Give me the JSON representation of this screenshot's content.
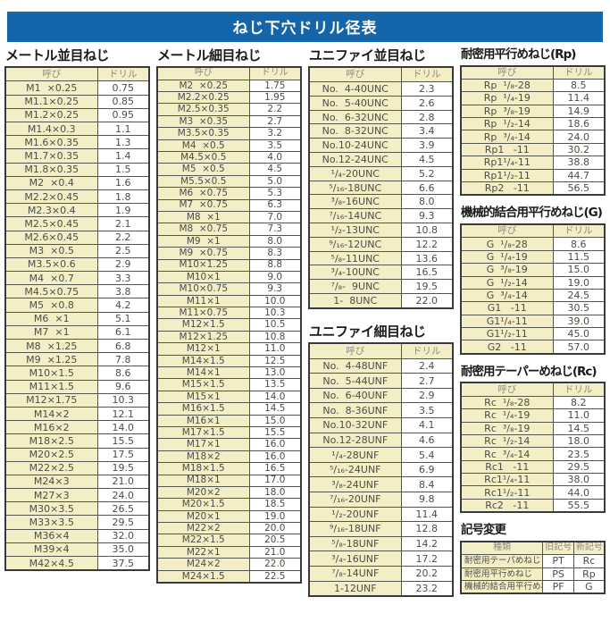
{
  "title": "ねじ下穴ドリル径表",
  "columns": [
    {
      "sections": [
        {
          "key": "metric-coarse",
          "heading": "メートル並目ねじ",
          "headers": [
            "呼び",
            "ドリル"
          ],
          "rows": [
            [
              "M1  ×0.25",
              "0.75"
            ],
            [
              "M1.1×0.25",
              "0.85"
            ],
            [
              "M1.2×0.25",
              "0.95"
            ],
            [
              "M1.4×0.3",
              "1.1"
            ],
            [
              "M1.6×0.35",
              "1.3"
            ],
            [
              "M1.7×0.35",
              "1.4"
            ],
            [
              "M1.8×0.35",
              "1.5"
            ],
            [
              "M2  ×0.4",
              "1.6"
            ],
            [
              "M2.2×0.45",
              "1.8"
            ],
            [
              "M2.3×0.4",
              "1.9"
            ],
            [
              "M2.5×0.45",
              "2.1"
            ],
            [
              "M2.6×0.45",
              "2.2"
            ],
            [
              "M3  ×0.5",
              "2.5"
            ],
            [
              "M3.5×0.6",
              "2.9"
            ],
            [
              "M4  ×0.7",
              "3.3"
            ],
            [
              "M4.5×0.75",
              "3.8"
            ],
            [
              "M5  ×0.8",
              "4.2"
            ],
            [
              "M6  ×1",
              "5.1"
            ],
            [
              "M7  ×1",
              "6.1"
            ],
            [
              "M8  ×1.25",
              "6.8"
            ],
            [
              "M9  ×1.25",
              "7.8"
            ],
            [
              "M10×1.5",
              "8.6"
            ],
            [
              "M11×1.5",
              "9.6"
            ],
            [
              "M12×1.75",
              "10.3"
            ],
            [
              "M14×2",
              "12.1"
            ],
            [
              "M16×2",
              "14.0"
            ],
            [
              "M18×2.5",
              "15.5"
            ],
            [
              "M20×2.5",
              "17.5"
            ],
            [
              "M22×2.5",
              "19.5"
            ],
            [
              "M24×3",
              "21.0"
            ],
            [
              "M27×3",
              "24.0"
            ],
            [
              "M30×3.5",
              "26.5"
            ],
            [
              "M33×3.5",
              "29.5"
            ],
            [
              "M36×4",
              "32.0"
            ],
            [
              "M39×4",
              "35.0"
            ],
            [
              "M42×4.5",
              "37.5"
            ]
          ]
        }
      ]
    },
    {
      "sections": [
        {
          "key": "metric-fine",
          "heading": "メートル細目ねじ",
          "headers": [
            "呼び",
            "ドリル"
          ],
          "rows": [
            [
              "M2  ×0.25",
              "1.75"
            ],
            [
              "M2.2×0.25",
              "1.95"
            ],
            [
              "M2.5×0.35",
              "2.2"
            ],
            [
              "M3  ×0.35",
              "2.7"
            ],
            [
              "M3.5×0.35",
              "3.2"
            ],
            [
              "M4  ×0.5",
              "3.5"
            ],
            [
              "M4.5×0.5",
              "4.0"
            ],
            [
              "M5  ×0.5",
              "4.5"
            ],
            [
              "M5.5×0.5",
              "5.0"
            ],
            [
              "M6  ×0.75",
              "5.3"
            ],
            [
              "M7  ×0.75",
              "6.3"
            ],
            [
              "M8  ×1",
              "7.0"
            ],
            [
              "M8  ×0.75",
              "7.3"
            ],
            [
              "M9  ×1",
              "8.0"
            ],
            [
              "M9  ×0.75",
              "8.3"
            ],
            [
              "M10×1.25",
              "8.8"
            ],
            [
              "M10×1",
              "9.0"
            ],
            [
              "M10×0.75",
              "9.3"
            ],
            [
              "M11×1",
              "10.0"
            ],
            [
              "M11×0.75",
              "10.3"
            ],
            [
              "M12×1.5",
              "10.5"
            ],
            [
              "M12×1.25",
              "10.8"
            ],
            [
              "M12×1",
              "11.0"
            ],
            [
              "M14×1.5",
              "12.5"
            ],
            [
              "M14×1",
              "13.0"
            ],
            [
              "M15×1.5",
              "13.5"
            ],
            [
              "M15×1",
              "14.0"
            ],
            [
              "M16×1.5",
              "14.5"
            ],
            [
              "M16×1",
              "15.0"
            ],
            [
              "M17×1.5",
              "15.5"
            ],
            [
              "M17×1",
              "16.0"
            ],
            [
              "M18×2",
              "16.0"
            ],
            [
              "M18×1.5",
              "16.5"
            ],
            [
              "M18×1",
              "17.0"
            ],
            [
              "M20×2",
              "18.0"
            ],
            [
              "M20×1.5",
              "18.5"
            ],
            [
              "M20×1",
              "19.0"
            ],
            [
              "M22×2",
              "20.0"
            ],
            [
              "M22×1.5",
              "20.5"
            ],
            [
              "M22×1",
              "21.0"
            ],
            [
              "M24×2",
              "22.0"
            ],
            [
              "M24×1.5",
              "22.5"
            ]
          ]
        }
      ]
    },
    {
      "sections": [
        {
          "key": "unified-coarse",
          "heading": "ユニファイ並目ねじ",
          "headers": [
            "呼び",
            "ドリル"
          ],
          "rows": [
            [
              "No.  4-40UNC",
              "2.3"
            ],
            [
              "No.  5-40UNC",
              "2.6"
            ],
            [
              "No.  6-32UNC",
              "2.8"
            ],
            [
              "No.  8-32UNC",
              "3.4"
            ],
            [
              "No.10-24UNC",
              "3.9"
            ],
            [
              "No.12-24UNC",
              "4.5"
            ],
            [
              "¹/₄-20UNC",
              "5.2"
            ],
            [
              "⁵/₁₆-18UNC",
              "6.6"
            ],
            [
              "³/₈-16UNC",
              "8.0"
            ],
            [
              "⁷/₁₆-14UNC",
              "9.3"
            ],
            [
              "¹/₂-13UNC",
              "10.8"
            ],
            [
              "⁹/₁₆-12UNC",
              "12.2"
            ],
            [
              "⁵/₈-11UNC",
              "13.6"
            ],
            [
              "³/₄-10UNC",
              "16.5"
            ],
            [
              "⁷/₈-  9UNC",
              "19.5"
            ],
            [
              "1-  8UNC",
              "22.0"
            ]
          ]
        },
        {
          "key": "unified-fine",
          "heading": "ユニファイ細目ねじ",
          "headers": [
            "呼び",
            "ドリル"
          ],
          "rows": [
            [
              "No.  4-48UNF",
              "2.4"
            ],
            [
              "No.  5-44UNF",
              "2.7"
            ],
            [
              "No.  6-40UNF",
              "2.9"
            ],
            [
              "No.  8-36UNF",
              "3.5"
            ],
            [
              "No.10-32UNF",
              "4.1"
            ],
            [
              "No.12-28UNF",
              "4.6"
            ],
            [
              "¹/₄-28UNF",
              "5.4"
            ],
            [
              "⁵/₁₆-24UNF",
              "6.9"
            ],
            [
              "³/₈-24UNF",
              "8.4"
            ],
            [
              "⁷/₁₆-20UNF",
              "9.8"
            ],
            [
              "¹/₂-20UNF",
              "11.4"
            ],
            [
              "⁹/₁₆-18UNF",
              "12.8"
            ],
            [
              "⁵/₈-18UNF",
              "14.2"
            ],
            [
              "³/₄-16UNF",
              "17.2"
            ],
            [
              "⁷/₈-14UNF",
              "20.2"
            ],
            [
              "1-12UNF",
              "23.2"
            ]
          ]
        }
      ]
    },
    {
      "sections": [
        {
          "key": "rp-parallel-sealing",
          "heading": "耐密用平行めねじ(Rp)",
          "headers": [
            "呼び",
            "ドリル"
          ],
          "rows": [
            [
              "Rp  ¹/₈-28",
              "8.5"
            ],
            [
              "Rp  ¹/₄-19",
              "11.4"
            ],
            [
              "Rp  ³/₈-19",
              "14.9"
            ],
            [
              "Rp  ¹/₂-14",
              "18.6"
            ],
            [
              "Rp  ³/₄-14",
              "24.0"
            ],
            [
              "Rp1   -11",
              "30.2"
            ],
            [
              "Rp1¹/₄-11",
              "38.8"
            ],
            [
              "Rp1¹/₂-11",
              "44.7"
            ],
            [
              "Rp2   -11",
              "56.5"
            ]
          ]
        },
        {
          "key": "g-parallel-mechanical",
          "heading": "機械的結合用平行めねじ(G)",
          "headers": [
            "呼び",
            "ドリル"
          ],
          "rows": [
            [
              "G  ¹/₈-28",
              "8.6"
            ],
            [
              "G  ¹/₄-19",
              "11.5"
            ],
            [
              "G  ³/₈-19",
              "15.0"
            ],
            [
              "G  ¹/₂-14",
              "19.0"
            ],
            [
              "G  ³/₄-14",
              "24.5"
            ],
            [
              "G1   -11",
              "30.5"
            ],
            [
              "G1¹/₄-11",
              "39.0"
            ],
            [
              "G1¹/₂-11",
              "45.0"
            ],
            [
              "G2   -11",
              "57.0"
            ]
          ]
        },
        {
          "key": "rc-taper-sealing",
          "heading": "耐密用テーパーめねじ(Rc)",
          "headers": [
            "呼び",
            "ドリル"
          ],
          "rows": [
            [
              "Rc  ¹/₈-28",
              "8.2"
            ],
            [
              "Rc  ¹/₄-19",
              "11.0"
            ],
            [
              "Rc  ³/₈-19",
              "14.5"
            ],
            [
              "Rc  ¹/₂-14",
              "18.0"
            ],
            [
              "Rc  ³/₄-14",
              "23.5"
            ],
            [
              "Rc1   -11",
              "29.5"
            ],
            [
              "Rc1¹/₄-11",
              "38.0"
            ],
            [
              "Rc1¹/₂-11",
              "44.0"
            ],
            [
              "Rc2   -11",
              "55.5"
            ]
          ]
        },
        {
          "key": "symbol-change",
          "heading": "記号変更",
          "headers": [
            "種類",
            "旧記号",
            "新記号"
          ],
          "rows": [
            [
              "耐密用テーパめねじ",
              "PT",
              "Rc"
            ],
            [
              "耐密用平行めねじ",
              "PS",
              "Rp"
            ],
            [
              "機械的結合用平行めねじ",
              "PF",
              "G"
            ]
          ]
        }
      ]
    }
  ]
}
